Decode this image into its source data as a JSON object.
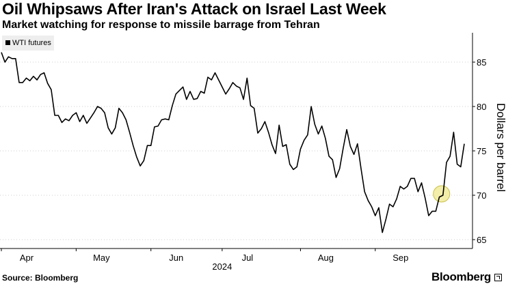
{
  "header": {
    "title": "Oil Whipsaws After Iran's Attack on Israel Last Week",
    "subtitle": "Market watching for response to missile barrage from Tehran"
  },
  "footer": {
    "source": "Source: Bloomberg",
    "brand": "Bloomberg"
  },
  "colors": {
    "line": "#000000",
    "highlight_fill": "#f2eca0",
    "highlight_stroke": "#c9bf4a",
    "legend_bg": "#eeeeee",
    "grid": "#cccccc"
  },
  "chart_data": {
    "type": "line",
    "title": "Oil Whipsaws After Iran's Attack on Israel Last Week",
    "subtitle": "Market watching for response to missile barrage from Tehran",
    "ylabel": "Dollars per barrel",
    "xlabel": "2024",
    "ylim": [
      64,
      88
    ],
    "yticks": [
      65,
      70,
      75,
      80,
      85
    ],
    "grid": "horizontal-dotted",
    "legend": "top-left",
    "x_ticks": [
      {
        "label": "Apr",
        "index": 0
      },
      {
        "label": "May",
        "index": 21
      },
      {
        "label": "Jun",
        "index": 42
      },
      {
        "label": "Jul",
        "index": 62
      },
      {
        "label": "Aug",
        "index": 84
      },
      {
        "label": "Sep",
        "index": 105
      }
    ],
    "year_label": "2024",
    "highlight_index": 124,
    "series": [
      {
        "name": "WTI futures",
        "values": [
          86.1,
          85.0,
          85.6,
          85.4,
          85.4,
          82.7,
          82.7,
          83.2,
          82.9,
          83.4,
          83.0,
          83.6,
          83.8,
          82.6,
          81.9,
          79.0,
          79.0,
          78.2,
          78.6,
          78.4,
          79.0,
          79.3,
          78.3,
          79.0,
          78.1,
          78.7,
          79.3,
          80.0,
          79.8,
          79.3,
          77.6,
          76.9,
          77.6,
          79.8,
          79.3,
          78.5,
          77.1,
          75.6,
          74.3,
          73.3,
          73.9,
          75.6,
          75.6,
          77.7,
          77.8,
          78.5,
          78.6,
          78.5,
          80.1,
          81.4,
          81.8,
          82.2,
          80.8,
          81.7,
          80.8,
          80.9,
          81.7,
          81.5,
          83.3,
          83.0,
          83.8,
          83.0,
          82.2,
          81.4,
          82.0,
          82.7,
          82.3,
          82.1,
          80.8,
          83.2,
          80.1,
          79.8,
          77.0,
          77.5,
          78.3,
          77.1,
          75.7,
          74.7,
          77.9,
          75.5,
          75.7,
          73.5,
          72.9,
          73.2,
          75.2,
          76.2,
          76.8,
          80.0,
          78.0,
          76.9,
          77.8,
          76.4,
          74.4,
          74.0,
          72.0,
          73.0,
          75.3,
          77.4,
          75.5,
          74.6,
          75.8,
          73.0,
          70.4,
          69.4,
          68.7,
          67.7,
          68.6,
          65.8,
          67.3,
          69.0,
          68.7,
          69.6,
          71.0,
          70.7,
          71.0,
          71.9,
          71.9,
          70.4,
          71.4,
          69.7,
          67.7,
          68.2,
          68.2,
          69.8,
          70.0,
          73.7,
          74.4,
          77.1,
          73.5,
          73.2,
          75.8
        ]
      }
    ]
  }
}
